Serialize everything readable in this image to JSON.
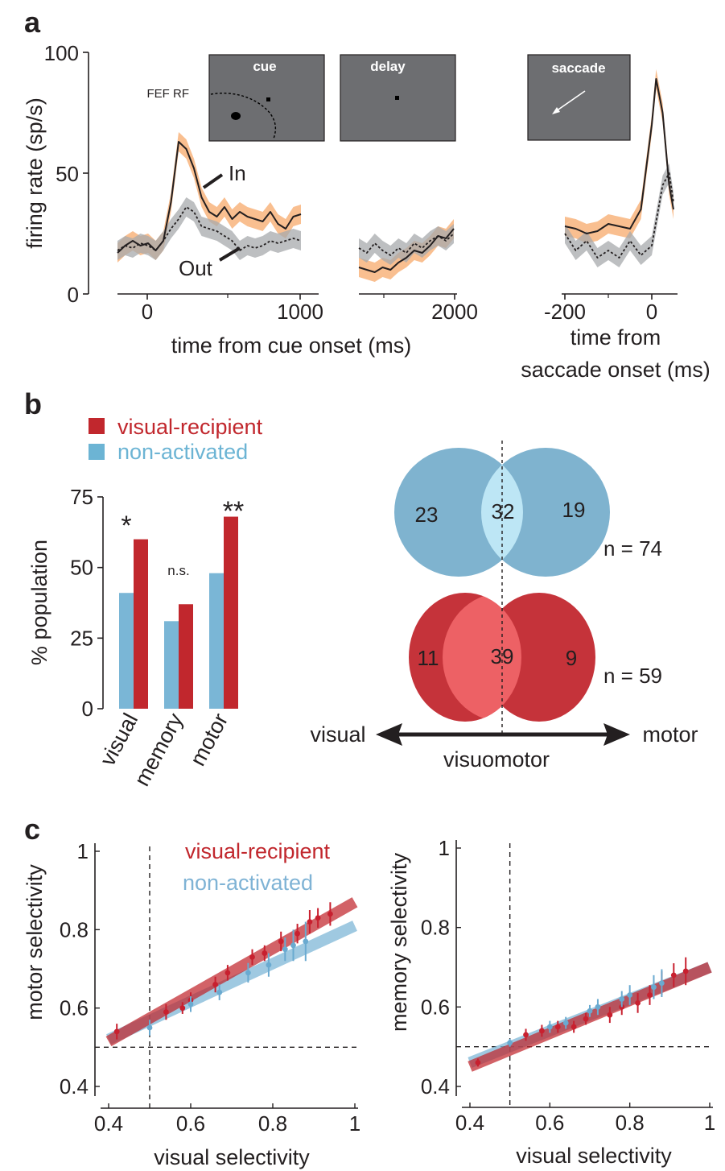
{
  "panels": {
    "a": "a",
    "b": "b",
    "c": "c"
  },
  "panel_a": {
    "ylabel": "firing rate (sp/s)",
    "yticks": [
      0,
      50,
      100
    ],
    "cue_ticks": [
      0,
      1000
    ],
    "delay_ticks": [
      2000
    ],
    "sacc_ticks": [
      -200,
      0
    ],
    "xlabel_cue": "time from cue onset (ms)",
    "xlabel_sacc_1": "time from",
    "xlabel_sacc_2": "saccade onset (ms)",
    "label_in": "In",
    "label_out": "Out",
    "box_cue": "cue",
    "box_delay": "delay",
    "box_saccade": "saccade",
    "fef_rf": "FEF RF",
    "colors": {
      "in": "#f7a96b",
      "out": "#a7a9ac",
      "box": "#6d6e71"
    }
  },
  "panel_b": {
    "legend": [
      {
        "label": "visual-recipient",
        "color": "#c1272d"
      },
      {
        "label": "non-activated",
        "color": "#6cb4d4"
      }
    ],
    "ylabel": "% population",
    "yticks": [
      0,
      25,
      50,
      75
    ],
    "sig": [
      "*",
      "n.s.",
      "**"
    ],
    "venn_top": {
      "left": "23",
      "center": "32",
      "right": "19",
      "n": "n = 74",
      "outer": "#7fb3cf",
      "inner": "#bde6f5"
    },
    "venn_bottom": {
      "left": "11",
      "center": "39",
      "right": "9",
      "n": "n = 59",
      "outer": "#c5333a",
      "inner": "#ed6165"
    },
    "axis_left": "visual",
    "axis_right": "motor",
    "axis_center": "visuomotor"
  },
  "panel_c": {
    "legend": [
      {
        "label": "visual-recipient",
        "color": "#c1272d"
      },
      {
        "label": "non-activated",
        "color": "#7fb3d5"
      }
    ],
    "left_ylabel": "motor selectivity",
    "right_ylabel": "memory selectivity",
    "xlabel": "visual selectivity",
    "xticks": [
      "0.4",
      "0.6",
      "0.8",
      "1"
    ],
    "yticks": [
      "0.4",
      "0.6",
      "0.8",
      "1"
    ]
  },
  "chart_data": [
    {
      "type": "line",
      "title": "",
      "xlabel": "time from cue onset (ms) / time from saccade onset (ms)",
      "ylabel": "firing rate (sp/s)",
      "ylim": [
        0,
        100
      ],
      "segments": [
        {
          "name": "cue",
          "xlim": [
            -200,
            1000
          ]
        },
        {
          "name": "delay",
          "xlim": [
            1400,
            2000
          ]
        },
        {
          "name": "saccade",
          "xlim": [
            -200,
            50
          ]
        }
      ],
      "series": [
        {
          "name": "In",
          "segment": "cue",
          "x": [
            -200,
            -150,
            -100,
            -50,
            0,
            50,
            100,
            150,
            200,
            250,
            300,
            350,
            400,
            450,
            500,
            550,
            600,
            650,
            700,
            750,
            800,
            850,
            900,
            950,
            1000
          ],
          "y": [
            17,
            20,
            22,
            20,
            21,
            18,
            22,
            38,
            63,
            60,
            52,
            40,
            34,
            32,
            36,
            31,
            34,
            32,
            31,
            30,
            34,
            29,
            27,
            32,
            33
          ]
        },
        {
          "name": "Out",
          "segment": "cue",
          "x": [
            -200,
            -150,
            -100,
            -50,
            0,
            50,
            100,
            150,
            200,
            250,
            300,
            350,
            400,
            450,
            500,
            550,
            600,
            650,
            700,
            750,
            800,
            850,
            900,
            950,
            1000
          ],
          "y": [
            18,
            20,
            19,
            21,
            20,
            18,
            22,
            27,
            31,
            36,
            34,
            28,
            27,
            26,
            24,
            22,
            18,
            20,
            19,
            20,
            22,
            21,
            22,
            23,
            22
          ]
        },
        {
          "name": "In",
          "segment": "delay",
          "x": [
            1400,
            1450,
            1500,
            1550,
            1600,
            1650,
            1700,
            1750,
            1800,
            1850,
            1900,
            1950,
            2000
          ],
          "y": [
            11,
            10,
            9,
            11,
            10,
            13,
            15,
            18,
            17,
            20,
            24,
            23,
            27
          ]
        },
        {
          "name": "Out",
          "segment": "delay",
          "x": [
            1400,
            1450,
            1500,
            1550,
            1600,
            1650,
            1700,
            1750,
            1800,
            1850,
            1900,
            1950,
            2000
          ],
          "y": [
            19,
            17,
            21,
            18,
            16,
            19,
            17,
            21,
            19,
            22,
            24,
            22,
            25
          ]
        },
        {
          "name": "In",
          "segment": "saccade",
          "x": [
            -200,
            -175,
            -150,
            -125,
            -100,
            -75,
            -50,
            -25,
            0,
            10,
            25,
            40,
            50
          ],
          "y": [
            28,
            27,
            25,
            26,
            29,
            28,
            27,
            35,
            70,
            89,
            75,
            45,
            35
          ]
        },
        {
          "name": "Out",
          "segment": "saccade",
          "x": [
            -200,
            -175,
            -150,
            -125,
            -100,
            -75,
            -50,
            -25,
            0,
            10,
            25,
            40,
            50
          ],
          "y": [
            25,
            18,
            22,
            15,
            18,
            15,
            22,
            16,
            20,
            30,
            45,
            50,
            38
          ]
        }
      ]
    },
    {
      "type": "bar",
      "title": "",
      "categories": [
        "visual",
        "memory",
        "motor"
      ],
      "series": [
        {
          "name": "non-activated",
          "values": [
            41,
            31,
            48
          ]
        },
        {
          "name": "visual-recipient",
          "values": [
            60,
            37,
            68
          ]
        }
      ],
      "ylabel": "% population",
      "ylim": [
        0,
        75
      ]
    },
    {
      "type": "scatter",
      "title": "",
      "xlabel": "visual selectivity",
      "ylabel": "motor selectivity",
      "xlim": [
        0.4,
        1
      ],
      "ylim": [
        0.4,
        1
      ],
      "reference_lines": {
        "x": 0.5,
        "y": 0.5
      },
      "series": [
        {
          "name": "visual-recipient",
          "x": [
            0.42,
            0.54,
            0.58,
            0.6,
            0.66,
            0.69,
            0.75,
            0.78,
            0.82,
            0.86,
            0.89,
            0.91,
            0.94
          ],
          "y": [
            0.54,
            0.59,
            0.6,
            0.62,
            0.66,
            0.69,
            0.73,
            0.74,
            0.77,
            0.79,
            0.82,
            0.83,
            0.84
          ],
          "err": [
            0.02,
            0.02,
            0.015,
            0.02,
            0.02,
            0.02,
            0.02,
            0.02,
            0.025,
            0.025,
            0.03,
            0.025,
            0.03
          ],
          "fit": {
            "x": [
              0.4,
              1.0
            ],
            "y": [
              0.515,
              0.87
            ]
          }
        },
        {
          "name": "non-activated",
          "x": [
            0.5,
            0.6,
            0.67,
            0.74,
            0.79,
            0.83,
            0.85,
            0.88
          ],
          "y": [
            0.55,
            0.61,
            0.64,
            0.69,
            0.71,
            0.75,
            0.76,
            0.77
          ],
          "err": [
            0.02,
            0.02,
            0.02,
            0.025,
            0.03,
            0.03,
            0.04,
            0.05
          ],
          "fit": {
            "x": [
              0.4,
              1.0
            ],
            "y": [
              0.52,
              0.81
            ]
          }
        }
      ]
    },
    {
      "type": "scatter",
      "title": "",
      "xlabel": "visual selectivity",
      "ylabel": "memory selectivity",
      "xlim": [
        0.4,
        1
      ],
      "ylim": [
        0.4,
        1
      ],
      "reference_lines": {
        "x": 0.5,
        "y": 0.5
      },
      "series": [
        {
          "name": "visual-recipient",
          "x": [
            0.42,
            0.54,
            0.58,
            0.62,
            0.66,
            0.69,
            0.75,
            0.78,
            0.82,
            0.85,
            0.88,
            0.91,
            0.94
          ],
          "y": [
            0.46,
            0.53,
            0.54,
            0.55,
            0.55,
            0.57,
            0.58,
            0.6,
            0.61,
            0.63,
            0.66,
            0.68,
            0.69
          ],
          "err": [
            0.01,
            0.015,
            0.015,
            0.015,
            0.015,
            0.015,
            0.02,
            0.02,
            0.025,
            0.025,
            0.03,
            0.03,
            0.035
          ],
          "fit": {
            "x": [
              0.4,
              1.0
            ],
            "y": [
              0.45,
              0.7
            ]
          }
        },
        {
          "name": "non-activated",
          "x": [
            0.5,
            0.6,
            0.64,
            0.7,
            0.72,
            0.78,
            0.8,
            0.86,
            0.88
          ],
          "y": [
            0.51,
            0.55,
            0.56,
            0.59,
            0.6,
            0.62,
            0.63,
            0.65,
            0.66
          ],
          "err": [
            0.01,
            0.015,
            0.015,
            0.015,
            0.02,
            0.02,
            0.025,
            0.03,
            0.035
          ],
          "fit": {
            "x": [
              0.4,
              1.0
            ],
            "y": [
              0.46,
              0.7
            ]
          }
        }
      ]
    }
  ]
}
